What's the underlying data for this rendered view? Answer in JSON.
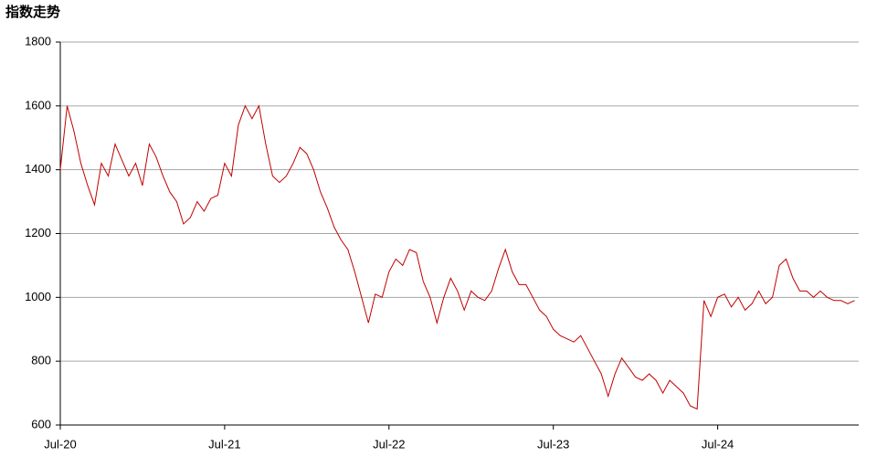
{
  "chart_data": {
    "type": "line",
    "title": "指数走势",
    "x": [
      0,
      0.5,
      1,
      1.5,
      2,
      2.5,
      3,
      3.5,
      4,
      4.5,
      5,
      5.5,
      6,
      6.5,
      7,
      7.5,
      8,
      8.5,
      9,
      9.5,
      10,
      10.5,
      11,
      11.5,
      12,
      12.5,
      13,
      13.5,
      14,
      14.5,
      15,
      15.5,
      16,
      16.5,
      17,
      17.5,
      18,
      18.5,
      19,
      19.5,
      20,
      20.5,
      21,
      21.5,
      22,
      22.5,
      23,
      23.5,
      24,
      24.5,
      25,
      25.5,
      26,
      26.5,
      27,
      27.5,
      28,
      28.5,
      29,
      29.5,
      30,
      30.5,
      31,
      31.5,
      32,
      32.5,
      33,
      33.5,
      34,
      34.5,
      35,
      35.5,
      36,
      36.5,
      37,
      37.5,
      38,
      38.5,
      39,
      39.5,
      40,
      40.5,
      41,
      41.5,
      42,
      42.5,
      43,
      43.5,
      44,
      44.5,
      45,
      45.5,
      46,
      46.5,
      47,
      47.5,
      48,
      48.5,
      49,
      49.5,
      50,
      50.5,
      51,
      51.5,
      52,
      52.5,
      53,
      53.5,
      54,
      54.5,
      55,
      55.5,
      56,
      56.5,
      57,
      57.5,
      58
    ],
    "series": [
      {
        "name": "指数",
        "color": "#c00000",
        "values": [
          1400,
          1600,
          1520,
          1420,
          1350,
          1290,
          1420,
          1380,
          1480,
          1430,
          1380,
          1420,
          1350,
          1480,
          1440,
          1380,
          1330,
          1300,
          1230,
          1250,
          1300,
          1270,
          1310,
          1320,
          1420,
          1380,
          1540,
          1600,
          1560,
          1600,
          1480,
          1380,
          1360,
          1380,
          1420,
          1470,
          1450,
          1400,
          1330,
          1280,
          1220,
          1180,
          1150,
          1080,
          1000,
          920,
          1010,
          1000,
          1080,
          1120,
          1100,
          1150,
          1140,
          1050,
          1000,
          920,
          1000,
          1060,
          1020,
          960,
          1020,
          1000,
          990,
          1020,
          1090,
          1150,
          1080,
          1040,
          1040,
          1000,
          960,
          940,
          900,
          880,
          870,
          860,
          880,
          840,
          800,
          760,
          690,
          760,
          810,
          780,
          750,
          740,
          760,
          740,
          700,
          740,
          720,
          700,
          660,
          650,
          990,
          940,
          1000,
          1010,
          970,
          1000,
          960,
          980,
          1020,
          980,
          1000,
          1100,
          1120,
          1060,
          1020,
          1020,
          1000,
          1020,
          1000,
          990,
          990,
          980,
          990
        ]
      }
    ],
    "xlim": [
      0,
      58.3
    ],
    "xticks": [
      {
        "value": 0,
        "label": "Jul-20"
      },
      {
        "value": 12,
        "label": "Jul-21"
      },
      {
        "value": 24,
        "label": "Jul-22"
      },
      {
        "value": 36,
        "label": "Jul-23"
      },
      {
        "value": 48,
        "label": "Jul-24"
      }
    ],
    "ylim": [
      600,
      1800
    ],
    "yticks": [
      600,
      800,
      1000,
      1200,
      1400,
      1600,
      1800
    ],
    "grid": true
  }
}
